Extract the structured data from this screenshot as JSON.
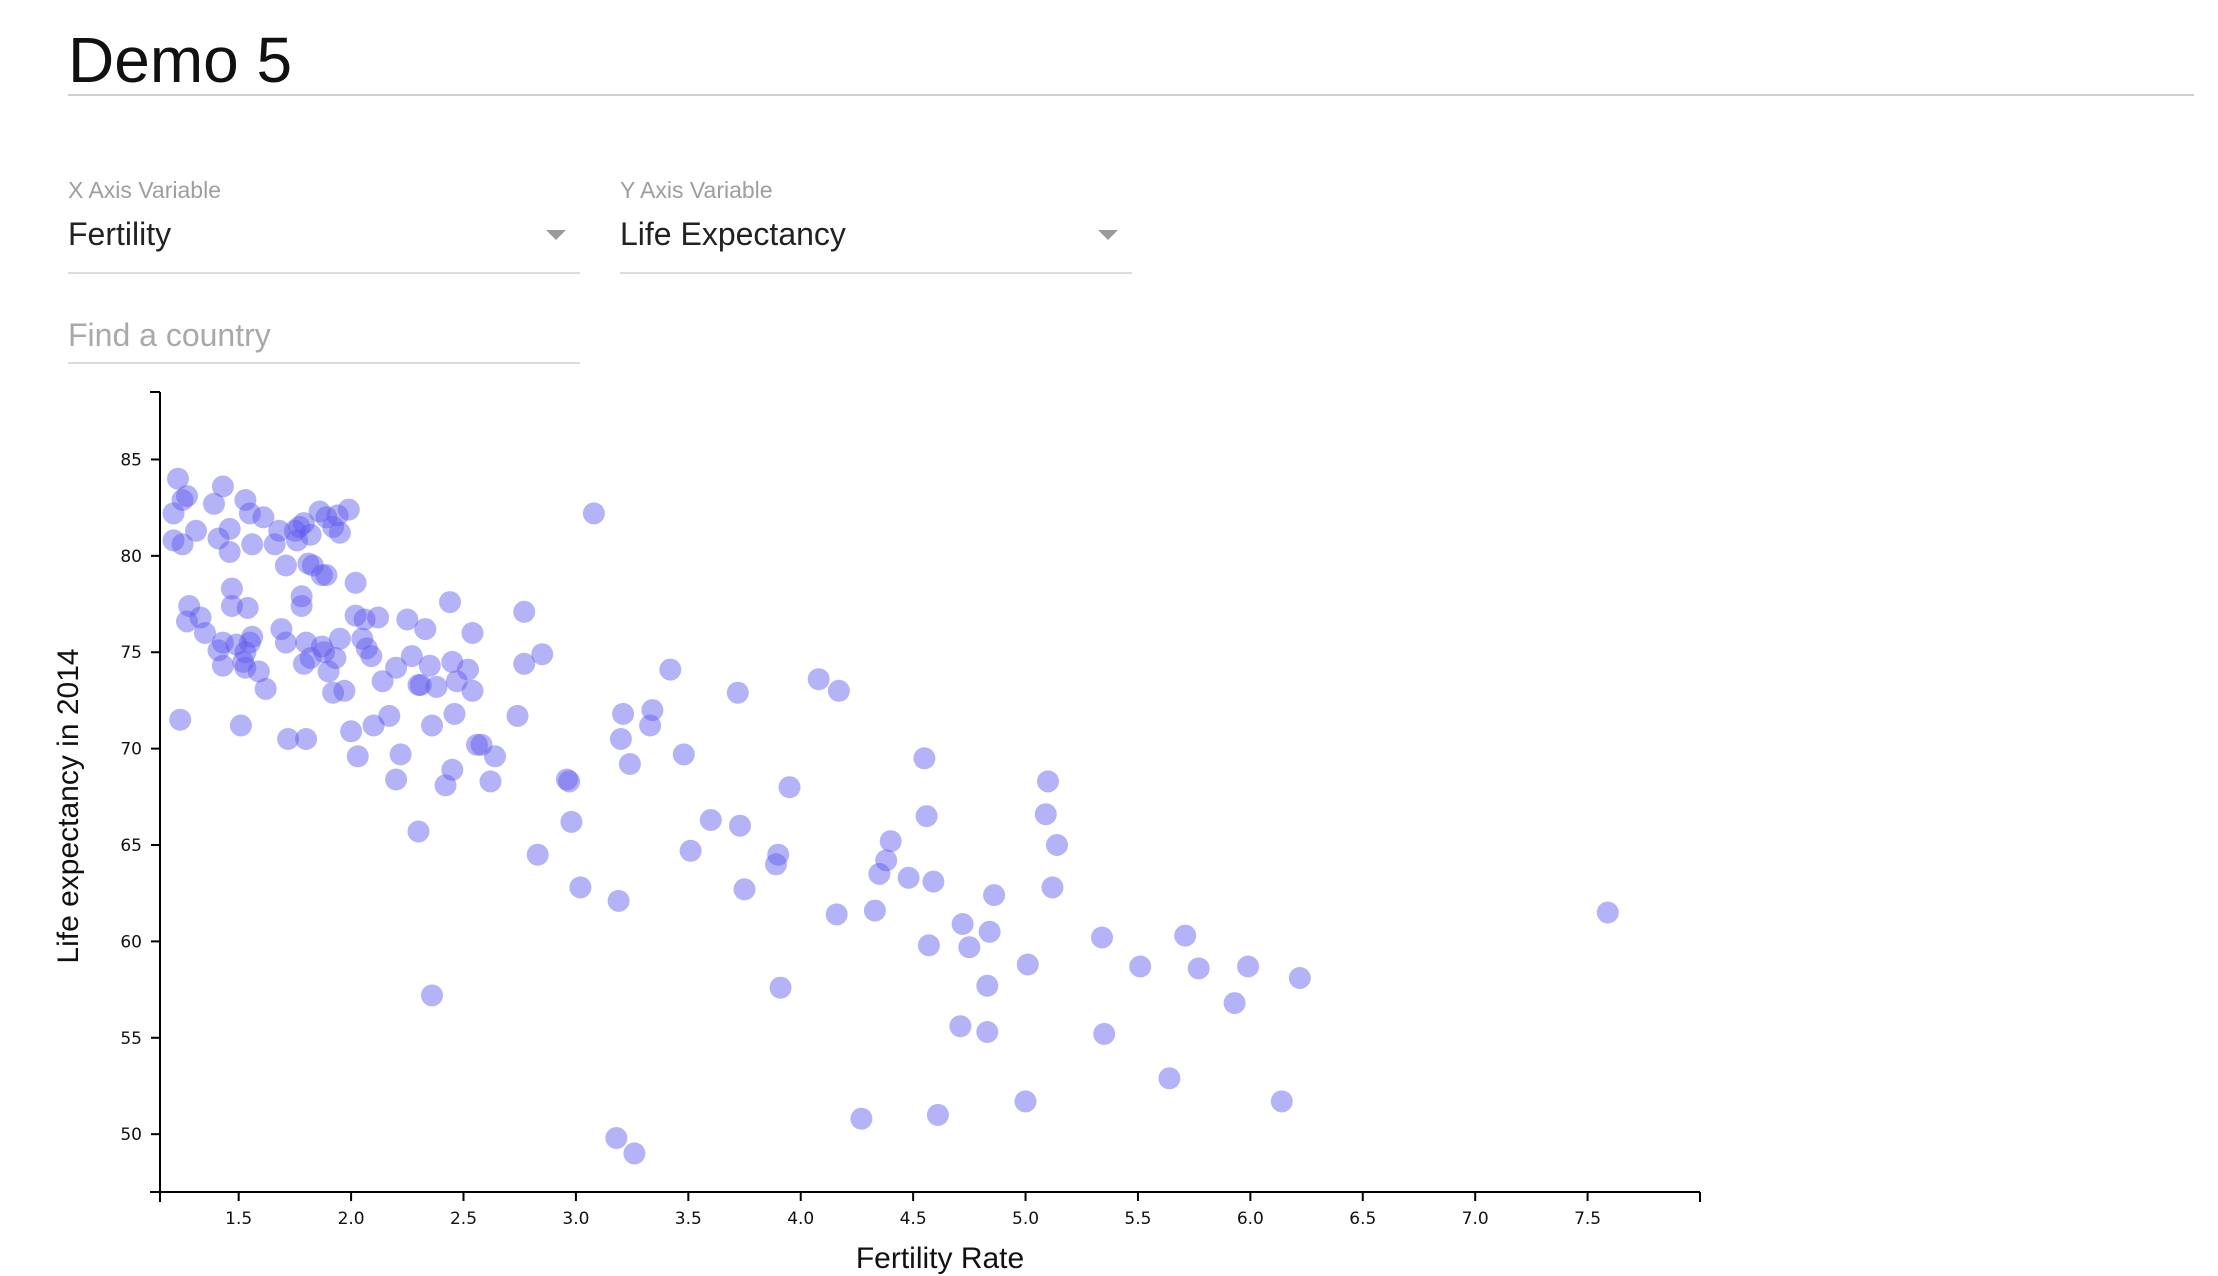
{
  "page": {
    "title": "Demo 5"
  },
  "controls": {
    "x": {
      "label": "X Axis Variable",
      "value": "Fertility"
    },
    "y": {
      "label": "Y Axis Variable",
      "value": "Life Expectancy"
    },
    "search": {
      "placeholder": "Find a country",
      "value": ""
    }
  },
  "chart_data": {
    "type": "scatter",
    "xlabel": "Fertility Rate",
    "ylabel": "Life expectancy in 2014",
    "xlim": [
      1.15,
      8.0
    ],
    "ylim": [
      47.0,
      88.5
    ],
    "grid": false,
    "x_ticks": [
      "1.5",
      "2.0",
      "2.5",
      "3.0",
      "3.5",
      "4.0",
      "4.5",
      "5.0",
      "5.5",
      "6.0",
      "6.5",
      "7.0",
      "7.5"
    ],
    "y_ticks": [
      "50",
      "55",
      "60",
      "65",
      "70",
      "75",
      "80",
      "85"
    ],
    "point_color": "#5b57ee",
    "point_opacity": 0.45,
    "points": [
      [
        1.23,
        84.0
      ],
      [
        1.21,
        82.2
      ],
      [
        1.25,
        82.9
      ],
      [
        1.27,
        83.1
      ],
      [
        1.21,
        80.8
      ],
      [
        1.25,
        80.6
      ],
      [
        1.31,
        81.3
      ],
      [
        1.39,
        82.7
      ],
      [
        1.43,
        83.6
      ],
      [
        1.41,
        80.9
      ],
      [
        1.46,
        81.4
      ],
      [
        1.46,
        80.2
      ],
      [
        1.53,
        82.9
      ],
      [
        1.55,
        82.2
      ],
      [
        1.56,
        80.6
      ],
      [
        1.61,
        82.0
      ],
      [
        1.66,
        80.6
      ],
      [
        1.68,
        81.3
      ],
      [
        1.71,
        79.5
      ],
      [
        1.75,
        81.3
      ],
      [
        1.76,
        80.8
      ],
      [
        1.77,
        81.5
      ],
      [
        1.79,
        81.7
      ],
      [
        1.82,
        81.1
      ],
      [
        1.83,
        79.5
      ],
      [
        1.86,
        82.3
      ],
      [
        1.87,
        79.0
      ],
      [
        1.89,
        79.0
      ],
      [
        1.89,
        82.0
      ],
      [
        1.92,
        81.5
      ],
      [
        1.94,
        82.1
      ],
      [
        1.95,
        81.2
      ],
      [
        1.99,
        82.4
      ],
      [
        1.81,
        79.6
      ],
      [
        1.28,
        77.4
      ],
      [
        1.33,
        76.8
      ],
      [
        1.27,
        76.6
      ],
      [
        1.35,
        76.0
      ],
      [
        1.41,
        75.1
      ],
      [
        1.43,
        75.5
      ],
      [
        1.43,
        74.3
      ],
      [
        1.47,
        78.3
      ],
      [
        1.47,
        77.4
      ],
      [
        1.49,
        75.4
      ],
      [
        1.52,
        74.5
      ],
      [
        1.53,
        75.0
      ],
      [
        1.53,
        74.2
      ],
      [
        1.55,
        75.5
      ],
      [
        1.56,
        75.8
      ],
      [
        1.54,
        77.3
      ],
      [
        1.59,
        74.0
      ],
      [
        1.62,
        73.1
      ],
      [
        1.24,
        71.5
      ],
      [
        1.51,
        71.2
      ],
      [
        1.69,
        76.2
      ],
      [
        1.71,
        75.5
      ],
      [
        1.78,
        77.9
      ],
      [
        1.78,
        77.4
      ],
      [
        1.79,
        74.4
      ],
      [
        1.8,
        75.5
      ],
      [
        1.82,
        74.7
      ],
      [
        1.87,
        75.3
      ],
      [
        1.88,
        75.0
      ],
      [
        1.9,
        74.0
      ],
      [
        1.92,
        72.9
      ],
      [
        1.93,
        74.7
      ],
      [
        1.95,
        75.7
      ],
      [
        1.97,
        73.0
      ],
      [
        2.02,
        78.6
      ],
      [
        2.02,
        76.9
      ],
      [
        2.06,
        76.7
      ],
      [
        2.05,
        75.7
      ],
      [
        2.07,
        75.2
      ],
      [
        2.09,
        74.8
      ],
      [
        2.12,
        76.8
      ],
      [
        2.14,
        73.5
      ],
      [
        2.17,
        71.7
      ],
      [
        2.1,
        71.2
      ],
      [
        2.0,
        70.9
      ],
      [
        2.03,
        69.6
      ],
      [
        1.72,
        70.5
      ],
      [
        1.8,
        70.5
      ],
      [
        2.2,
        74.2
      ],
      [
        2.22,
        69.7
      ],
      [
        2.2,
        68.4
      ],
      [
        2.25,
        76.7
      ],
      [
        2.27,
        74.8
      ],
      [
        2.3,
        73.3
      ],
      [
        2.31,
        73.3
      ],
      [
        2.33,
        76.2
      ],
      [
        2.35,
        74.3
      ],
      [
        2.36,
        71.2
      ],
      [
        2.38,
        73.2
      ],
      [
        2.42,
        68.1
      ],
      [
        2.44,
        77.6
      ],
      [
        2.45,
        74.5
      ],
      [
        2.46,
        71.8
      ],
      [
        2.47,
        73.5
      ],
      [
        2.52,
        74.1
      ],
      [
        2.54,
        76.0
      ],
      [
        2.54,
        73.0
      ],
      [
        2.45,
        68.9
      ],
      [
        2.56,
        70.2
      ],
      [
        2.58,
        70.2
      ],
      [
        2.62,
        68.3
      ],
      [
        2.64,
        69.6
      ],
      [
        2.3,
        65.7
      ],
      [
        2.74,
        71.7
      ],
      [
        2.77,
        74.4
      ],
      [
        2.77,
        77.1
      ],
      [
        2.85,
        74.9
      ],
      [
        2.83,
        64.5
      ],
      [
        2.96,
        68.4
      ],
      [
        2.97,
        68.3
      ],
      [
        2.98,
        66.2
      ],
      [
        3.02,
        62.8
      ],
      [
        3.08,
        82.2
      ],
      [
        2.36,
        57.2
      ],
      [
        3.18,
        49.8
      ],
      [
        3.26,
        49.0
      ],
      [
        3.19,
        62.1
      ],
      [
        3.2,
        70.5
      ],
      [
        3.21,
        71.8
      ],
      [
        3.24,
        69.2
      ],
      [
        3.33,
        71.2
      ],
      [
        3.34,
        72.0
      ],
      [
        3.42,
        74.1
      ],
      [
        3.48,
        69.7
      ],
      [
        3.51,
        64.7
      ],
      [
        3.6,
        66.3
      ],
      [
        3.72,
        72.9
      ],
      [
        3.73,
        66.0
      ],
      [
        3.75,
        62.7
      ],
      [
        3.89,
        64.0
      ],
      [
        3.9,
        64.5
      ],
      [
        3.91,
        57.6
      ],
      [
        3.95,
        68.0
      ],
      [
        4.08,
        73.6
      ],
      [
        4.16,
        61.4
      ],
      [
        4.17,
        73.0
      ],
      [
        4.27,
        50.8
      ],
      [
        4.33,
        61.6
      ],
      [
        4.35,
        63.5
      ],
      [
        4.38,
        64.2
      ],
      [
        4.4,
        65.2
      ],
      [
        4.48,
        63.3
      ],
      [
        4.55,
        69.5
      ],
      [
        4.56,
        66.5
      ],
      [
        4.57,
        59.8
      ],
      [
        4.59,
        63.1
      ],
      [
        4.61,
        51.0
      ],
      [
        4.71,
        55.6
      ],
      [
        4.72,
        60.9
      ],
      [
        4.75,
        59.7
      ],
      [
        4.83,
        57.7
      ],
      [
        4.83,
        55.3
      ],
      [
        4.84,
        60.5
      ],
      [
        4.86,
        62.4
      ],
      [
        5.0,
        51.7
      ],
      [
        5.01,
        58.8
      ],
      [
        5.09,
        66.6
      ],
      [
        5.1,
        68.3
      ],
      [
        5.12,
        62.8
      ],
      [
        5.14,
        65.0
      ],
      [
        5.34,
        60.2
      ],
      [
        5.35,
        55.2
      ],
      [
        5.51,
        58.7
      ],
      [
        5.64,
        52.9
      ],
      [
        5.71,
        60.3
      ],
      [
        5.77,
        58.6
      ],
      [
        5.93,
        56.8
      ],
      [
        5.99,
        58.7
      ],
      [
        6.14,
        51.7
      ],
      [
        6.22,
        58.1
      ],
      [
        7.59,
        61.5
      ]
    ]
  }
}
